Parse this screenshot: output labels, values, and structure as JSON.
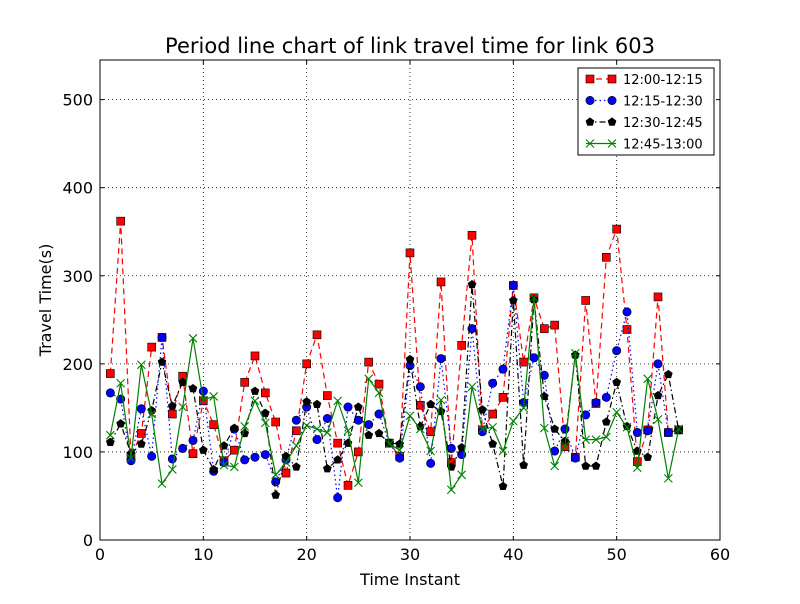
{
  "chart_data": {
    "type": "line",
    "title": "Period line chart of link travel time for link 603",
    "xlabel": "Time Instant",
    "ylabel": "Travel Time(s)",
    "xlim": [
      0,
      60
    ],
    "ylim": [
      0,
      545
    ],
    "xticks": [
      0,
      10,
      20,
      30,
      40,
      50,
      60
    ],
    "yticks": [
      0,
      100,
      200,
      300,
      400,
      500
    ],
    "grid": true,
    "legend_position": "top-right",
    "x": [
      1,
      2,
      3,
      4,
      5,
      6,
      7,
      8,
      9,
      10,
      11,
      12,
      13,
      14,
      15,
      16,
      17,
      18,
      19,
      20,
      21,
      22,
      23,
      24,
      25,
      26,
      27,
      28,
      29,
      30,
      31,
      32,
      33,
      34,
      35,
      36,
      37,
      38,
      39,
      40,
      41,
      42,
      43,
      44,
      45,
      46,
      47,
      48,
      49,
      50,
      51,
      52,
      53,
      54,
      55,
      56
    ],
    "series": [
      {
        "name": "12:00-12:15",
        "color": "#ff0000",
        "marker": "square",
        "line_style": "dashed",
        "values": [
          189,
          362,
          95,
          121,
          219,
          230,
          143,
          186,
          98,
          158,
          131,
          90,
          102,
          179,
          209,
          167,
          134,
          76,
          124,
          200,
          233,
          164,
          110,
          62,
          100,
          202,
          177,
          110,
          95,
          326,
          153,
          123,
          293,
          88,
          221,
          346,
          125,
          143,
          162,
          289,
          202,
          275,
          240,
          244,
          106,
          94,
          272,
          155,
          321,
          353,
          239,
          89,
          125,
          276,
          122,
          125
        ]
      },
      {
        "name": "12:15-12:30",
        "color": "#0000ff",
        "marker": "circle",
        "line_style": "dotted",
        "values": [
          167,
          160,
          90,
          149,
          95,
          230,
          92,
          104,
          113,
          169,
          78,
          88,
          126,
          91,
          94,
          97,
          66,
          91,
          136,
          151,
          114,
          138,
          48,
          151,
          136,
          131,
          143,
          110,
          93,
          198,
          174,
          87,
          206,
          104,
          97,
          240,
          123,
          178,
          194,
          289,
          156,
          207,
          187,
          101,
          126,
          93,
          142,
          156,
          162,
          215,
          259,
          122,
          124,
          200,
          122,
          125
        ]
      },
      {
        "name": "12:30-12:45",
        "color": "#000000",
        "marker": "pentagon",
        "line_style": "dashdot",
        "values": [
          111,
          132,
          98,
          109,
          147,
          202,
          152,
          179,
          172,
          102,
          80,
          107,
          127,
          121,
          169,
          144,
          51,
          95,
          83,
          157,
          154,
          81,
          91,
          110,
          151,
          119,
          121,
          110,
          109,
          205,
          129,
          154,
          146,
          83,
          105,
          290,
          148,
          109,
          61,
          272,
          85,
          273,
          163,
          126,
          112,
          210,
          84,
          84,
          134,
          179,
          129,
          101,
          94,
          164,
          188,
          125
        ]
      },
      {
        "name": "12:45-13:00",
        "color": "#008000",
        "marker": "x",
        "line_style": "solid",
        "values": [
          119,
          178,
          93,
          199,
          143,
          64,
          80,
          151,
          229,
          159,
          163,
          85,
          83,
          129,
          158,
          133,
          74,
          88,
          107,
          130,
          126,
          122,
          158,
          124,
          65,
          183,
          167,
          109,
          102,
          141,
          126,
          101,
          159,
          57,
          74,
          174,
          126,
          128,
          101,
          135,
          150,
          275,
          127,
          84,
          107,
          212,
          114,
          114,
          117,
          145,
          128,
          82,
          183,
          137,
          70,
          126
        ]
      }
    ]
  }
}
